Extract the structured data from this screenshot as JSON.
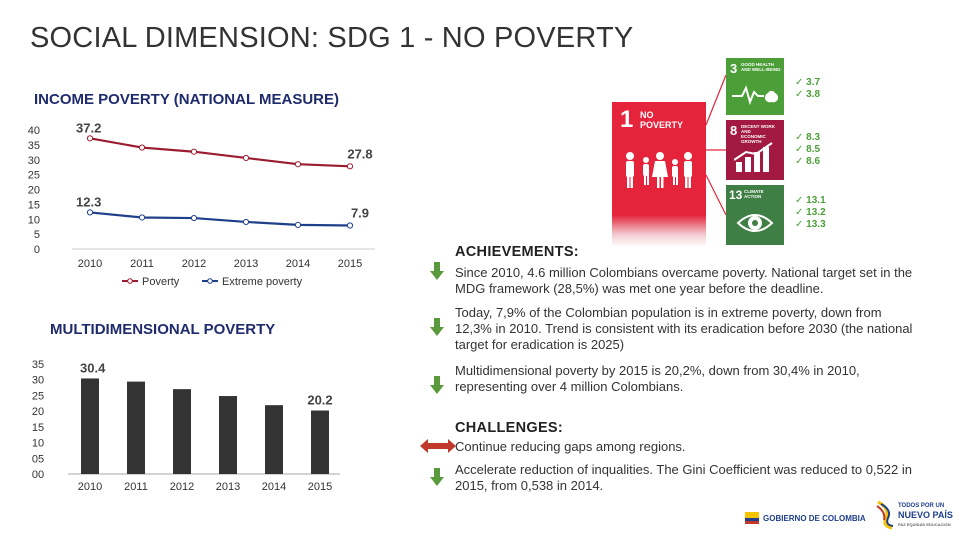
{
  "page_title": "SOCIAL DIMENSION: SDG 1 - NO POVERTY",
  "income_chart": {
    "title": "INCOME POVERTY (NATIONAL MEASURE)",
    "chart_data": {
      "type": "line",
      "title": "INCOME POVERTY (NATIONAL MEASURE)",
      "categories": [
        "2010",
        "2011",
        "2012",
        "2013",
        "2014",
        "2015"
      ],
      "series": [
        {
          "name": "Poverty",
          "values": [
            37.2,
            34.1,
            32.7,
            30.6,
            28.5,
            27.8
          ],
          "color": "#9b1b30"
        },
        {
          "name": "Extreme poverty",
          "values": [
            12.3,
            10.6,
            10.4,
            9.1,
            8.1,
            7.9
          ],
          "color": "#1f3f8a"
        }
      ],
      "first_labels": [
        "37.2",
        "12.3"
      ],
      "last_labels": [
        "27.8",
        "7.9"
      ],
      "y_ticks": [
        "40",
        "35",
        "30",
        "25",
        "20",
        "15",
        "10",
        "5",
        "0"
      ],
      "ylim": [
        0,
        40
      ],
      "legend": [
        "Poverty",
        "Extreme poverty"
      ]
    }
  },
  "mpi_chart": {
    "title": "MULTIDIMENSIONAL POVERTY",
    "chart_data": {
      "type": "bar",
      "title": "MULTIDIMENSIONAL POVERTY",
      "categories": [
        "2010",
        "2011",
        "2012",
        "2013",
        "2014",
        "2015"
      ],
      "values": [
        30.4,
        29.4,
        27.0,
        24.8,
        21.9,
        20.2
      ],
      "first_label": "30.4",
      "last_label": "20.2",
      "y_ticks": [
        "35",
        "30",
        "25",
        "20",
        "15",
        "10",
        "05",
        "00"
      ],
      "ylim": [
        0,
        35
      ],
      "color": "#333333"
    }
  },
  "sdg": {
    "goal1": {
      "number": "1",
      "text": "NO\nPOVERTY",
      "color": "#e5243b"
    },
    "goal3": {
      "number": "3",
      "text": "GOOD HEALTH\nAND WELL-BEING",
      "color": "#4c9f38",
      "checks": [
        "3.7",
        "3.8"
      ]
    },
    "goal8": {
      "number": "8",
      "text": "DECENT WORK AND\nECONOMIC GROWTH",
      "color": "#a21942",
      "checks": [
        "8.3",
        "8.5",
        "8.6"
      ]
    },
    "goal13": {
      "number": "13",
      "text": "CLIMATE\nACTION",
      "color": "#3f7e44",
      "checks": [
        "13.1",
        "13.2",
        "13.3"
      ]
    },
    "check_mark": "✓"
  },
  "achievements": {
    "heading": "ACHIEVEMENTS:",
    "items": [
      "Since 2010, 4.6 million Colombians overcame poverty. National target set in the MDG framework (28,5%) was met one year before the deadline.",
      "Today, 7,9% of the Colombian population is in extreme poverty, down from 12,3% in 2010. Trend is consistent with its eradication before 2030 (the national target for eradication is 2025)",
      "Multidimensional poverty by 2015 is 20,2%, down from 30,4% in 2010, representing over 4 million Colombians."
    ]
  },
  "challenges": {
    "heading": "CHALLENGES:",
    "items": [
      "Continue reducing gaps among regions.",
      "Accelerate reduction of inqualities. The Gini Coefficient was reduced to 0,522 in 2015, from 0,538 in 2014."
    ]
  },
  "footer": {
    "gov_logo": "GOBIERNO DE COLOMBIA",
    "tpn_logo_line1": "TODOS POR UN",
    "tpn_logo_line2": "NUEVO PAÍS",
    "tpn_logo_line3": "PAZ  EQUIDAD  EDUCACIÓN"
  },
  "colors": {
    "arrow_down": "#5b9a3c",
    "arrow_both": "#c0392b",
    "title_blue": "#1f2b6d"
  }
}
